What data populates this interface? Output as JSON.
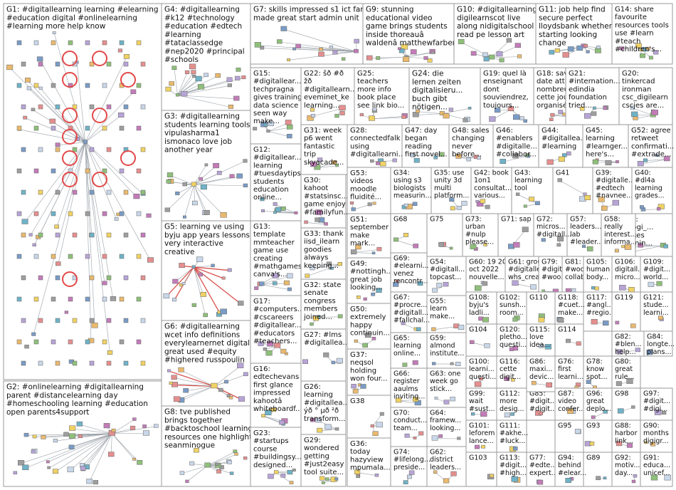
{
  "groups": [
    {
      "id": "G1",
      "lines": [
        "G1: #digitallearning learning #elearning",
        "#education digital #onlinelearning",
        "#learning more help know"
      ]
    },
    {
      "id": "G2",
      "lines": [
        "G2: #onlinelearning #digitallearning",
        "parent #distancelearning day",
        "#homeschooling learning #education",
        "open parents4support"
      ]
    },
    {
      "id": "G3",
      "lines": [
        "G3: #digitallearning",
        "students learning tools",
        "vipulasharma1",
        "ismonaco love job",
        "another year"
      ]
    },
    {
      "id": "G4",
      "lines": [
        "G4: #digitallearning",
        "#k12 #technology",
        "#education #edtech",
        "#learning",
        "#tataclassedge",
        "#nep2020 #principal",
        "#schools"
      ]
    },
    {
      "id": "G5",
      "lines": [
        "G5: learning ve using",
        "byju app years lessons",
        "very interactive",
        "creative"
      ]
    },
    {
      "id": "G6",
      "lines": [
        "G6: #digitallearning",
        "wcet info definitions",
        "everylearnernet digital",
        "great used #equity",
        "#highered russpoulin"
      ]
    },
    {
      "id": "G7",
      "lines": [
        "G7: skills impressed s1 ict fan",
        "made great start admin unit"
      ]
    },
    {
      "id": "G8",
      "lines": [
        "G8: tve published",
        "brings together",
        "#backtoschool learning",
        "resources one highlight",
        "seanminogue"
      ]
    },
    {
      "id": "G9",
      "lines": [
        "G9: stunning",
        "educational video",
        "game brings students",
        "inside thoreauâ",
        "waldenâ matthewfarberday"
      ]
    },
    {
      "id": "G10",
      "lines": [
        "G10: #digitallearning",
        "digilearnscot live",
        "along nidigitalschool",
        "read pe lesson art"
      ]
    },
    {
      "id": "G11",
      "lines": [
        "G11: job help find",
        "secure perfect",
        "lloydsbank whether",
        "starting looking",
        "change"
      ]
    },
    {
      "id": "G12",
      "lines": [
        "G12:",
        "#digitallear...",
        "learning",
        "#tuesdaytips",
        "students",
        "education",
        "online..."
      ]
    },
    {
      "id": "G13",
      "lines": [
        "G13:",
        "template",
        "mmteacher",
        "game use",
        "creating",
        "#mathgames",
        "canva's..."
      ]
    },
    {
      "id": "G14",
      "lines": [
        "G14: share",
        "favourite",
        "resources tools",
        "use #learn",
        "#teach",
        "#children's..."
      ]
    },
    {
      "id": "G15",
      "lines": [
        "G15:",
        "#digitallear...",
        "techpragna",
        "gives training",
        "data science",
        "seen way",
        "make..."
      ]
    },
    {
      "id": "G16",
      "lines": [
        "G16:",
        "edtechevans",
        "first glance",
        "impressed",
        "kahootâ",
        "whiteboardf..."
      ]
    },
    {
      "id": "G17",
      "lines": [
        "G17:",
        "#computers...",
        "#cscareers",
        "#digitallear...",
        "#educators",
        "#teachers..."
      ]
    },
    {
      "id": "G18",
      "lines": [
        "G18: save",
        "date attend",
        "nombreux",
        "cette journée",
        "organisée..."
      ]
    },
    {
      "id": "G19",
      "lines": [
        "G19: quel là",
        "enseignant",
        "dont",
        "souviendrez,",
        "toujours..."
      ]
    },
    {
      "id": "G20",
      "lines": [
        "G20:",
        "tinkercad",
        "ironman",
        "csc_digilearn",
        "cscjes are..."
      ]
    },
    {
      "id": "G21",
      "lines": [
        "G21:",
        "#internation...",
        "edindia",
        "foundation",
        "tried..."
      ]
    },
    {
      "id": "G22",
      "lines": [
        "G22: šð #ð",
        "žð",
        "#digitallearn...",
        "eveminet_ke",
        "learning..."
      ]
    },
    {
      "id": "G23",
      "lines": [
        "G23:",
        "#startups",
        "course",
        "#buildingsy...",
        "designed..."
      ]
    },
    {
      "id": "G24",
      "lines": [
        "G24: die",
        "lernen zeiten",
        "digitalisieru...",
        "buch gibt",
        "nötigen..."
      ]
    },
    {
      "id": "G25",
      "lines": [
        "G25:",
        "teachers",
        "more info",
        "book place",
        "see link bio..."
      ]
    },
    {
      "id": "G26",
      "lines": [
        "G26:",
        "learning",
        "#digitallea...",
        "ýð ° µð ²ð",
        "transform..."
      ]
    },
    {
      "id": "G27",
      "lines": [
        "G27: #lms",
        "#digitallea..."
      ]
    },
    {
      "id": "G28",
      "lines": [
        "G28:",
        "connectedfalk",
        "using",
        "#digitallearni..."
      ]
    },
    {
      "id": "G29",
      "lines": [
        "G29:",
        "wondered",
        "getting",
        "#just2easy",
        "tool suite..."
      ]
    },
    {
      "id": "G30",
      "lines": [
        "G30:",
        "kahoot",
        "#statsinsc...",
        "game enjoy",
        "#familyfun..."
      ]
    },
    {
      "id": "G31",
      "lines": [
        "G31: week",
        "p6 went",
        "fantastic",
        "trip",
        "skyacade..."
      ]
    },
    {
      "id": "G32",
      "lines": [
        "G32: state",
        "senate",
        "congress",
        "members",
        "joined..."
      ]
    },
    {
      "id": "G33",
      "lines": [
        "G33: thank",
        "iisd_ilearn",
        "goodies",
        "always",
        "keeping..."
      ]
    },
    {
      "id": "G34",
      "lines": [
        "G34:",
        "using s3",
        "biologists",
        "measurin..."
      ]
    },
    {
      "id": "G35",
      "lines": [
        "G35: use",
        "unity 3d",
        "multi",
        "platform..."
      ]
    },
    {
      "id": "G36",
      "lines": [
        "G36:",
        "today",
        "hazyview",
        "mpumala..."
      ]
    },
    {
      "id": "G37",
      "lines": [
        "G37:",
        "neqsol",
        "holding",
        "won four..."
      ]
    },
    {
      "id": "G38",
      "lines": [
        "G38"
      ]
    },
    {
      "id": "G39",
      "lines": [
        "G39:",
        "#digitalle...",
        "#edtech",
        "#navnee..."
      ]
    },
    {
      "id": "G40",
      "lines": [
        "G40:",
        "#dl4a",
        "learning",
        "grades..."
      ]
    },
    {
      "id": "G41",
      "lines": [
        "G41"
      ]
    },
    {
      "id": "G42",
      "lines": [
        "G42: book",
        "1on1",
        "consultat...",
        "various..."
      ]
    },
    {
      "id": "G43",
      "lines": [
        "G43:",
        "learning",
        "tool"
      ]
    },
    {
      "id": "G44",
      "lines": [
        "G44:",
        "#digitallea...",
        "#learning"
      ]
    },
    {
      "id": "G45",
      "lines": [
        "G45:",
        "learning",
        "#learnger...",
        "here's..."
      ]
    },
    {
      "id": "G46",
      "lines": [
        "G46:",
        "#enablers",
        "#digitalle...",
        "#collabor..."
      ]
    },
    {
      "id": "G47",
      "lines": [
        "G47: day",
        "began",
        "reading",
        "first novel..."
      ]
    },
    {
      "id": "G48",
      "lines": [
        "G48: sales",
        "changing",
        "never",
        "before..."
      ]
    },
    {
      "id": "G49",
      "lines": [
        "G49:",
        "#nottingh...",
        "great job",
        "looking..."
      ]
    },
    {
      "id": "G50",
      "lines": [
        "G50:",
        "extremely",
        "happy",
        "continuin..."
      ]
    },
    {
      "id": "G51",
      "lines": [
        "G51:",
        "september",
        "make",
        "mark..."
      ]
    },
    {
      "id": "G52",
      "lines": [
        "G52: agree",
        "retweet",
        "confirmati...",
        "#extrade..."
      ]
    },
    {
      "id": "G53",
      "lines": [
        "G53:",
        "videos",
        "moodle",
        "fluidité..."
      ]
    },
    {
      "id": "G54",
      "lines": [
        "G54:",
        "#digitall...",
        "topcast..."
      ]
    },
    {
      "id": "G55",
      "lines": [
        "G55:",
        "learn",
        "make..."
      ]
    },
    {
      "id": "G56",
      "lines": [
        "G56:",
        "binogi_...",
        "makes",
        "learnin..."
      ]
    },
    {
      "id": "G57",
      "lines": [
        "G57:",
        "leaders...",
        "lab",
        "#leader..."
      ]
    },
    {
      "id": "G58",
      "lines": [
        "G58:",
        "really",
        "interest...",
        "informa..."
      ]
    },
    {
      "id": "G59",
      "lines": [
        "G59:",
        "almond",
        "institute..."
      ]
    },
    {
      "id": "G60",
      "lines": [
        "G60: 19 20",
        "oct 2022",
        "nouvelle..."
      ]
    },
    {
      "id": "G61",
      "lines": [
        "G61: group",
        "#digitalle...",
        "whs_crea..."
      ]
    },
    {
      "id": "G62",
      "lines": [
        "G62:",
        "district",
        "leaders..."
      ]
    },
    {
      "id": "G63",
      "lines": [
        "G63: one",
        "week go",
        "stick..."
      ]
    },
    {
      "id": "G64",
      "lines": [
        "G64:",
        "framew...",
        "looking..."
      ]
    },
    {
      "id": "G65",
      "lines": [
        "G65:",
        "learning",
        "online..."
      ]
    },
    {
      "id": "G66",
      "lines": [
        "G66:",
        "register",
        "aaulms",
        "inviting..."
      ]
    },
    {
      "id": "G67",
      "lines": [
        "G67:",
        "#procre...",
        "#digitall...",
        "#fallchal..."
      ]
    },
    {
      "id": "G68",
      "lines": [
        "G68"
      ]
    },
    {
      "id": "G69",
      "lines": [
        "G69:",
        "#elearni...",
        "venez",
        "rencontr..."
      ]
    },
    {
      "id": "G70",
      "lines": [
        "G70:",
        "conduct...",
        "team..."
      ]
    },
    {
      "id": "G71",
      "lines": [
        "G71: sap"
      ]
    },
    {
      "id": "G72",
      "lines": [
        "G72:",
        "micros...",
        "#digitall..."
      ]
    },
    {
      "id": "G73",
      "lines": [
        "G73:",
        "urban",
        "#nulp",
        "please..."
      ]
    },
    {
      "id": "G74",
      "lines": [
        "G74:",
        "#lifelong...",
        "preside..."
      ]
    },
    {
      "id": "G75",
      "lines": [
        "G75"
      ]
    },
    {
      "id": "G76",
      "lines": [
        "G76:",
        "first",
        "learni..."
      ]
    },
    {
      "id": "G77",
      "lines": [
        "G77:",
        "#edte...",
        "expert..."
      ]
    },
    {
      "id": "G78",
      "lines": [
        "G78:",
        "know",
        "spot..."
      ]
    },
    {
      "id": "G79",
      "lines": [
        "G79:",
        "#digit...",
        "#woo..."
      ]
    },
    {
      "id": "G80",
      "lines": [
        "G80:",
        "great",
        "rule..."
      ]
    },
    {
      "id": "G81",
      "lines": [
        "G81:",
        "#woo...",
        "collab..."
      ]
    },
    {
      "id": "G82",
      "lines": [
        "G82:",
        "#blen...",
        "help..."
      ]
    },
    {
      "id": "G83",
      "lines": [
        "G83:",
        "creati...",
        "high..."
      ]
    },
    {
      "id": "G84",
      "lines": [
        "G84:",
        "longte...",
        "plans..."
      ]
    },
    {
      "id": "G85",
      "lines": [
        "G85:",
        "#digit...",
        "#digit..."
      ]
    },
    {
      "id": "G86",
      "lines": [
        "G86:",
        "maxi...",
        "devic..."
      ]
    },
    {
      "id": "G87",
      "lines": [
        "G87:",
        "video",
        "confer..."
      ]
    },
    {
      "id": "G88",
      "lines": [
        "G88:",
        "harbor",
        "link..."
      ]
    },
    {
      "id": "G89",
      "lines": [
        "G89"
      ]
    },
    {
      "id": "G90",
      "lines": [
        "G90:",
        "months",
        "digigr..."
      ]
    },
    {
      "id": "G91",
      "lines": [
        "G91:",
        "educa...",
        "unicef..."
      ]
    },
    {
      "id": "G92",
      "lines": [
        "G92:",
        "motiv...",
        "day..."
      ]
    },
    {
      "id": "G93",
      "lines": [
        "G93"
      ]
    },
    {
      "id": "G94",
      "lines": [
        "G94:",
        "behind",
        "#elear..."
      ]
    },
    {
      "id": "G95",
      "lines": [
        "G95"
      ]
    },
    {
      "id": "G96",
      "lines": [
        "G96:",
        "great",
        "deplo..."
      ]
    },
    {
      "id": "G97",
      "lines": [
        "G97:",
        "#digit...",
        "#digi..."
      ]
    },
    {
      "id": "G98",
      "lines": [
        "G98"
      ]
    },
    {
      "id": "G99",
      "lines": [
        "G99:",
        "wait",
        "#sust..."
      ]
    },
    {
      "id": "G100",
      "lines": [
        "G100:",
        "learni...",
        "questi..."
      ]
    },
    {
      "id": "G101",
      "lines": [
        "G101:",
        "leforem",
        "lance..."
      ]
    },
    {
      "id": "G102",
      "lines": [
        "G102:",
        "sunsh...",
        "room..."
      ]
    },
    {
      "id": "G103",
      "lines": [
        "G103"
      ]
    },
    {
      "id": "G104",
      "lines": [
        "G104"
      ]
    },
    {
      "id": "G105",
      "lines": [
        "G105:",
        "human",
        "body..."
      ]
    },
    {
      "id": "G106",
      "lines": [
        "G106:",
        "digitall...",
        "micro..."
      ]
    },
    {
      "id": "G107",
      "lines": [
        "G107"
      ]
    },
    {
      "id": "G108",
      "lines": [
        "G108:",
        "byju's",
        "ladli..."
      ]
    },
    {
      "id": "G109",
      "lines": [
        "G109:",
        "#digit...",
        "world..."
      ]
    },
    {
      "id": "G110",
      "lines": [
        "G110"
      ]
    },
    {
      "id": "G111",
      "lines": [
        "G111:",
        "#akhe...",
        "#luck..."
      ]
    },
    {
      "id": "G112",
      "lines": [
        "G112:",
        "more",
        "desig..."
      ]
    },
    {
      "id": "G113",
      "lines": [
        "G113:",
        "#digit...",
        "#high..."
      ]
    },
    {
      "id": "G114",
      "lines": [
        "G114"
      ]
    },
    {
      "id": "G115",
      "lines": [
        "G115:",
        "love",
        "idea..."
      ]
    },
    {
      "id": "G116",
      "lines": [
        "G116:",
        "cette",
        "digit..."
      ]
    },
    {
      "id": "G117",
      "lines": [
        "G117:",
        "#angl...",
        "#regio..."
      ]
    },
    {
      "id": "G118",
      "lines": [
        "G118:",
        "#cuet...",
        "make..."
      ]
    },
    {
      "id": "G119",
      "lines": [
        "G119"
      ]
    },
    {
      "id": "G120",
      "lines": [
        "G120:",
        "pletho...",
        "questi..."
      ]
    },
    {
      "id": "G121",
      "lines": [
        "G121:",
        "stude...",
        "learni..."
      ]
    }
  ],
  "colors": {
    "background": "#ffffff",
    "border": "#9a9a9a",
    "edge": "#9aa1a8",
    "loop": "#e34848",
    "node_fill": "#d8e4f2"
  }
}
